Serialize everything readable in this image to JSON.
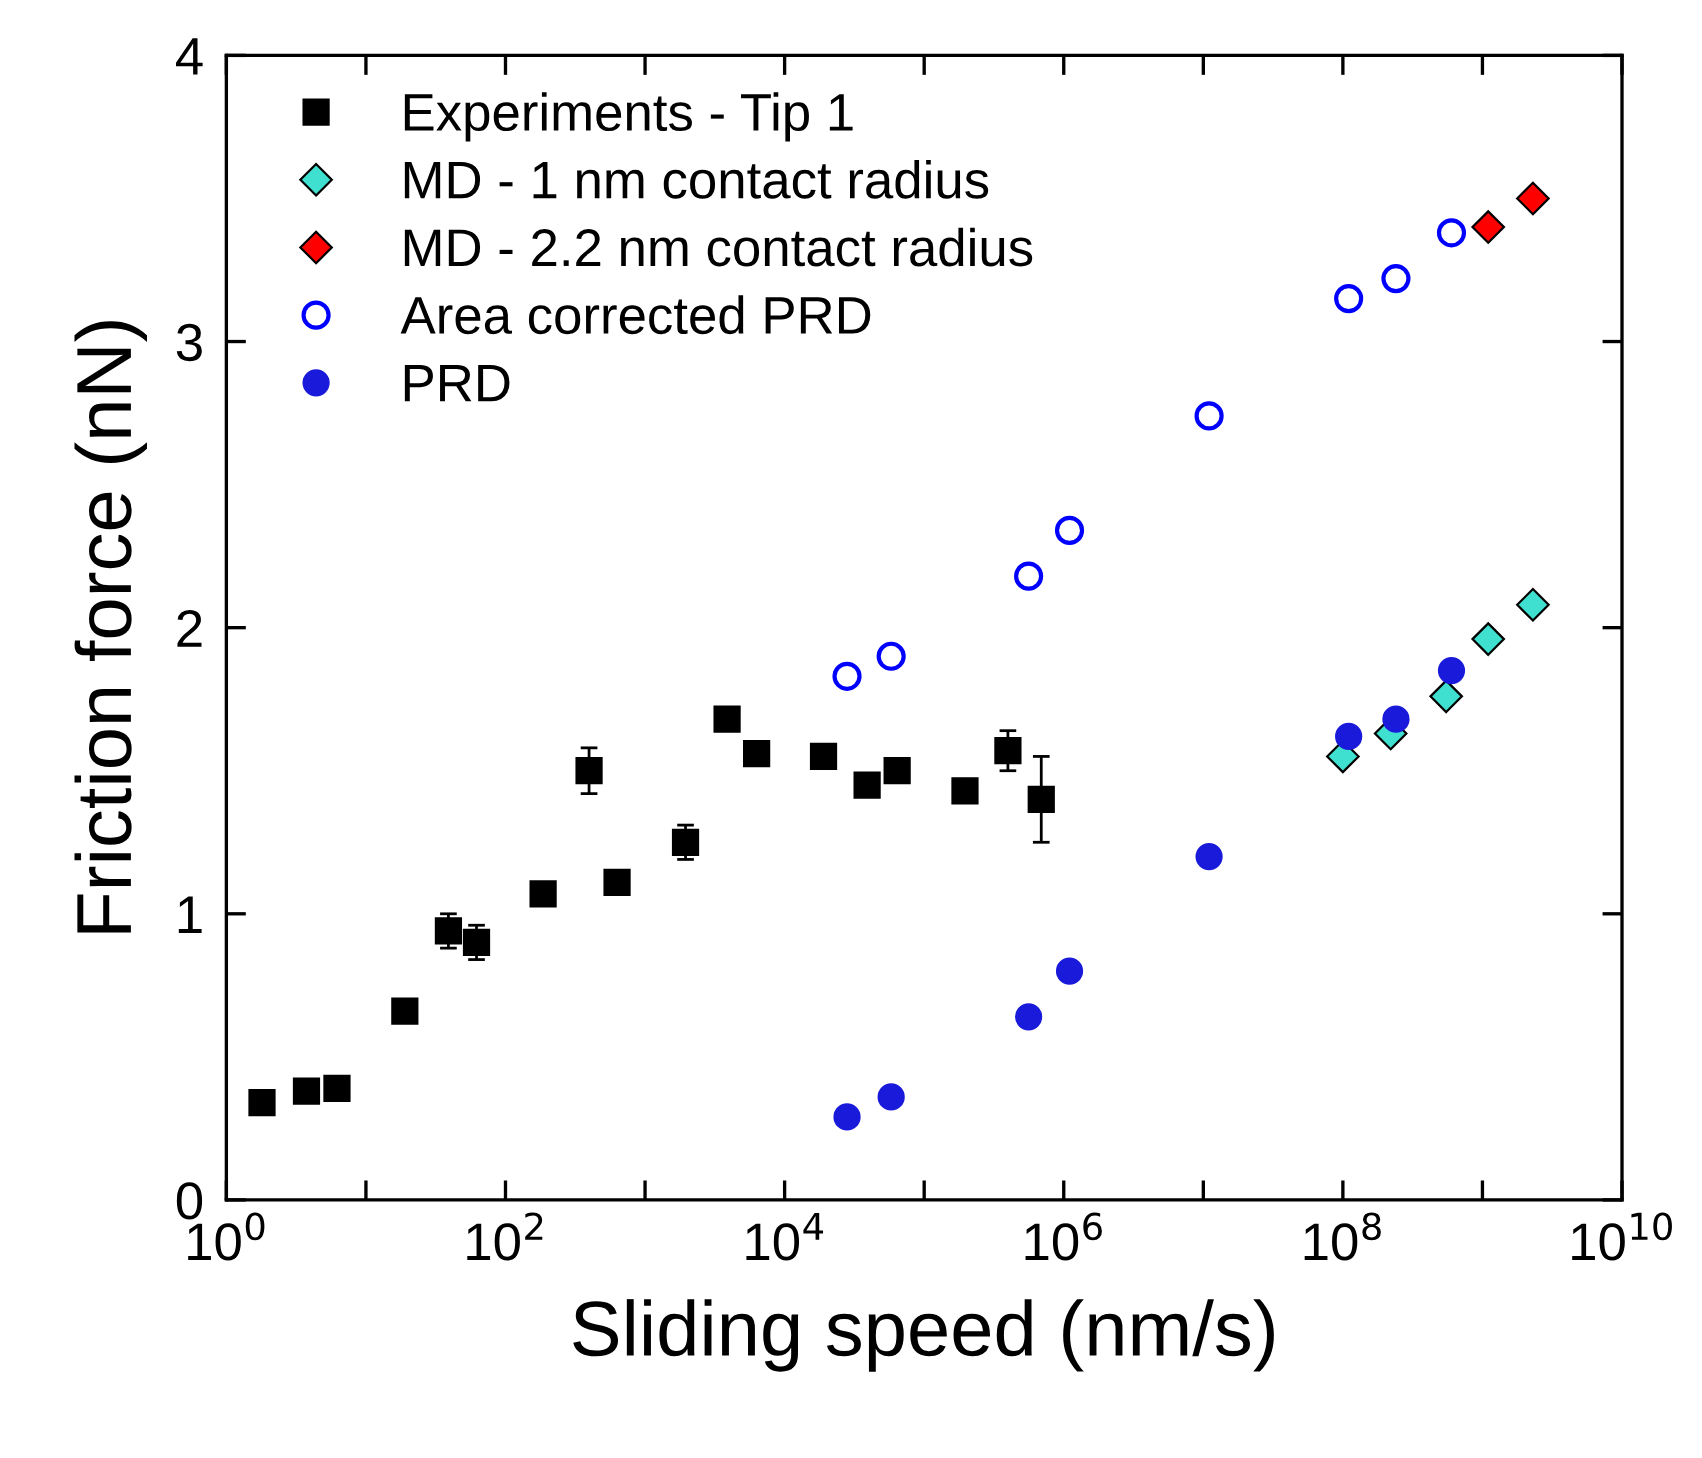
{
  "chart_data": {
    "type": "scatter",
    "xlabel": "Sliding speed (nm/s)",
    "ylabel": "Friction force (nN)",
    "log": "x",
    "xlim": [
      1,
      10000000000.0
    ],
    "ylim": [
      0,
      4
    ],
    "xticks": [
      {
        "value": 1,
        "label": "10$^{0}$"
      },
      {
        "value": 10,
        "label": null
      },
      {
        "value": 100,
        "label": "10$^{2}$"
      },
      {
        "value": 1000,
        "label": null
      },
      {
        "value": 10000,
        "label": "10$^{4}$"
      },
      {
        "value": 100000,
        "label": null
      },
      {
        "value": 1000000,
        "label": "10$^{6}$"
      },
      {
        "value": 10000000,
        "label": null
      },
      {
        "value": 100000000,
        "label": "10$^{8}$"
      },
      {
        "value": 1000000000,
        "label": null
      },
      {
        "value": 10000000000,
        "label": "10$^{10}$"
      }
    ],
    "yticks": [
      0,
      1,
      2,
      3,
      4
    ],
    "grid": false,
    "legend": "top left",
    "series": [
      {
        "name": "Experiments - Tip 1",
        "color": "#000000",
        "marker": "square",
        "x": [
          1.8,
          3.75,
          6.2,
          19,
          39,
          62,
          186,
          397,
          630,
          1950,
          3870,
          6300,
          19000,
          39000,
          64000,
          196000,
          398000,
          690000
        ],
        "values": [
          0.34,
          0.38,
          0.39,
          0.66,
          0.94,
          0.9,
          1.07,
          1.5,
          1.11,
          1.25,
          1.68,
          1.56,
          1.55,
          1.45,
          1.5,
          1.43,
          1.57,
          1.4
        ],
        "errors": [
          null,
          null,
          null,
          null,
          0.06,
          0.06,
          0.03,
          0.08,
          null,
          0.06,
          null,
          null,
          null,
          null,
          null,
          0.04,
          0.07,
          0.15
        ]
      },
      {
        "name": "MD - 1 nm contact radius",
        "color": "#40e0d0",
        "marker": "diamond",
        "x": [
          100000000.0,
          220000000.0,
          550000000.0,
          1100000000.0,
          2300000000.0
        ],
        "values": [
          1.55,
          1.63,
          1.76,
          1.96,
          2.08
        ]
      },
      {
        "name": "MD - 2.2 nm contact radius",
        "color": "#ff0000",
        "marker": "diamond",
        "x": [
          1100000000.0,
          2300000000.0
        ],
        "values": [
          3.4,
          3.5
        ]
      },
      {
        "name": "Area corrected PRD",
        "color": "#0000ff",
        "marker": "circle",
        "x": [
          28000,
          58000,
          560000,
          1100000,
          11000000,
          110000000,
          240000000,
          600000000
        ],
        "values": [
          1.83,
          1.9,
          2.18,
          2.34,
          2.74,
          3.15,
          3.22,
          3.38
        ]
      },
      {
        "name": "PRD",
        "color": "#1a1adb",
        "marker": "circle",
        "x": [
          28000,
          58000,
          560000,
          1100000,
          11000000,
          110000000,
          240000000,
          600000000
        ],
        "values": [
          0.29,
          0.36,
          0.64,
          0.8,
          1.2,
          1.62,
          1.68,
          1.85
        ]
      }
    ]
  }
}
